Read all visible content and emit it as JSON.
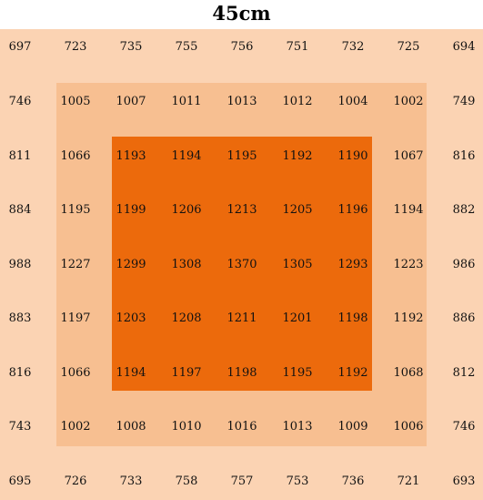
{
  "title": "45cm",
  "colors": {
    "outer_zone": "#fbd3b3",
    "middle_zone": "#f7bf91",
    "inner_zone": "#ec6a0c",
    "text": "#111111"
  },
  "grid": [
    [
      "697",
      "723",
      "735",
      "755",
      "756",
      "751",
      "732",
      "725",
      "694"
    ],
    [
      "746",
      "1005",
      "1007",
      "1011",
      "1013",
      "1012",
      "1004",
      "1002",
      "749"
    ],
    [
      "811",
      "1066",
      "1193",
      "1194",
      "1195",
      "1192",
      "1190",
      "1067",
      "816"
    ],
    [
      "884",
      "1195",
      "1199",
      "1206",
      "1213",
      "1205",
      "1196",
      "1194",
      "882"
    ],
    [
      "988",
      "1227",
      "1299",
      "1308",
      "1370",
      "1305",
      "1293",
      "1223",
      "986"
    ],
    [
      "883",
      "1197",
      "1203",
      "1208",
      "1211",
      "1201",
      "1198",
      "1192",
      "886"
    ],
    [
      "816",
      "1066",
      "1194",
      "1197",
      "1198",
      "1195",
      "1192",
      "1068",
      "812"
    ],
    [
      "743",
      "1002",
      "1008",
      "1010",
      "1016",
      "1013",
      "1009",
      "1006",
      "746"
    ],
    [
      "695",
      "726",
      "733",
      "758",
      "757",
      "753",
      "736",
      "721",
      "693"
    ]
  ]
}
